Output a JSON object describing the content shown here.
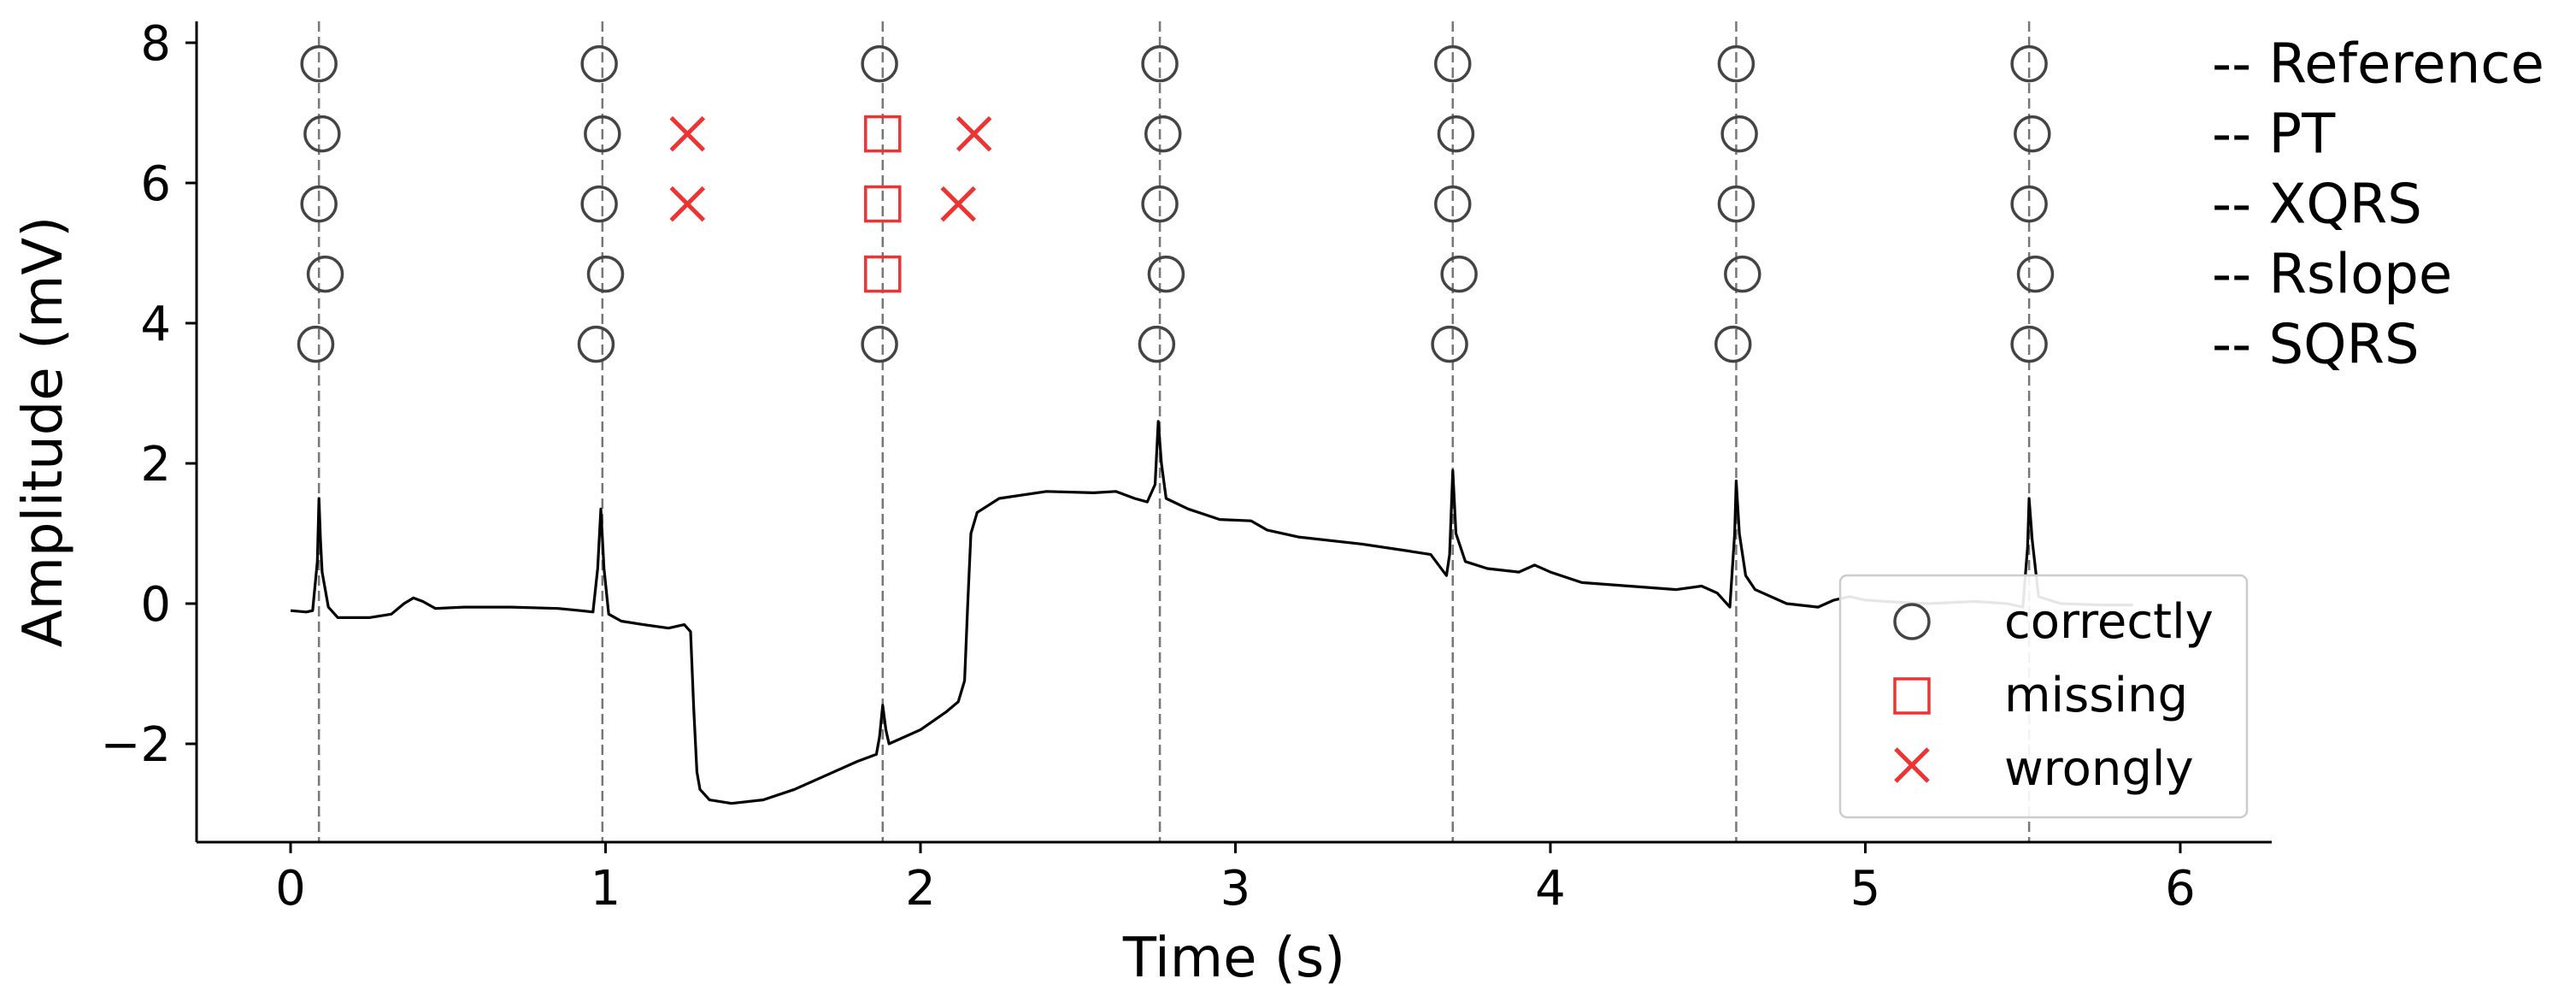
{
  "chart_data": {
    "type": "line",
    "title": "",
    "xlabel": "Time (s)",
    "ylabel": "Amplitude (mV)",
    "xlim": [
      -0.3,
      6.3
    ],
    "ylim": [
      -3.4,
      8.3
    ],
    "x_ticks": [
      0,
      1,
      2,
      3,
      4,
      5,
      6
    ],
    "y_ticks": [
      -2,
      0,
      2,
      4,
      6,
      8
    ],
    "grid": false,
    "colors": {
      "signal": "#000000",
      "correct": "#444444",
      "missing": "#ee3333",
      "wrong": "#ee3333",
      "beat_line": "#777777"
    },
    "beats": [
      0.09,
      0.99,
      1.88,
      2.76,
      3.69,
      4.59,
      5.52
    ],
    "algorithms": [
      {
        "name": "Reference",
        "y": 7.7
      },
      {
        "name": "PT",
        "y": 6.7
      },
      {
        "name": "XQRS",
        "y": 5.7
      },
      {
        "name": "Rslope",
        "y": 4.7
      },
      {
        "name": "SQRS",
        "y": 3.7
      }
    ],
    "detections": {
      "correctly": [
        [
          0.09,
          7.7
        ],
        [
          0.1,
          6.7
        ],
        [
          0.09,
          5.7
        ],
        [
          0.11,
          4.7
        ],
        [
          0.08,
          3.7
        ],
        [
          0.98,
          7.7
        ],
        [
          0.99,
          6.7
        ],
        [
          0.98,
          5.7
        ],
        [
          1.0,
          4.7
        ],
        [
          0.97,
          3.7
        ],
        [
          1.87,
          7.7
        ],
        [
          1.87,
          3.7
        ],
        [
          2.76,
          7.7
        ],
        [
          2.77,
          6.7
        ],
        [
          2.76,
          5.7
        ],
        [
          2.78,
          4.7
        ],
        [
          2.75,
          3.7
        ],
        [
          3.69,
          7.7
        ],
        [
          3.7,
          6.7
        ],
        [
          3.69,
          5.7
        ],
        [
          3.71,
          4.7
        ],
        [
          3.68,
          3.7
        ],
        [
          4.59,
          7.7
        ],
        [
          4.6,
          6.7
        ],
        [
          4.59,
          5.7
        ],
        [
          4.61,
          4.7
        ],
        [
          4.58,
          3.7
        ],
        [
          5.52,
          7.7
        ],
        [
          5.53,
          6.7
        ],
        [
          5.52,
          5.7
        ],
        [
          5.54,
          4.7
        ],
        [
          5.52,
          3.7
        ]
      ],
      "missing": [
        [
          1.88,
          6.7
        ],
        [
          1.88,
          5.7
        ],
        [
          1.88,
          4.7
        ]
      ],
      "wrongly": [
        [
          1.26,
          6.7
        ],
        [
          1.26,
          5.7
        ],
        [
          2.17,
          6.7
        ],
        [
          2.12,
          5.7
        ]
      ]
    },
    "signal": [
      [
        0.0,
        -0.1
      ],
      [
        0.05,
        -0.12
      ],
      [
        0.07,
        -0.1
      ],
      [
        0.085,
        0.6
      ],
      [
        0.09,
        1.5
      ],
      [
        0.095,
        0.9
      ],
      [
        0.1,
        0.45
      ],
      [
        0.12,
        -0.05
      ],
      [
        0.15,
        -0.2
      ],
      [
        0.25,
        -0.2
      ],
      [
        0.32,
        -0.15
      ],
      [
        0.36,
        0.0
      ],
      [
        0.39,
        0.08
      ],
      [
        0.42,
        0.03
      ],
      [
        0.46,
        -0.07
      ],
      [
        0.55,
        -0.05
      ],
      [
        0.7,
        -0.05
      ],
      [
        0.85,
        -0.07
      ],
      [
        0.92,
        -0.1
      ],
      [
        0.96,
        -0.12
      ],
      [
        0.975,
        0.5
      ],
      [
        0.985,
        1.35
      ],
      [
        0.995,
        0.5
      ],
      [
        1.01,
        -0.15
      ],
      [
        1.05,
        -0.25
      ],
      [
        1.12,
        -0.3
      ],
      [
        1.2,
        -0.35
      ],
      [
        1.25,
        -0.3
      ],
      [
        1.27,
        -0.4
      ],
      [
        1.28,
        -1.5
      ],
      [
        1.29,
        -2.4
      ],
      [
        1.3,
        -2.65
      ],
      [
        1.33,
        -2.8
      ],
      [
        1.4,
        -2.85
      ],
      [
        1.5,
        -2.8
      ],
      [
        1.6,
        -2.65
      ],
      [
        1.7,
        -2.45
      ],
      [
        1.8,
        -2.25
      ],
      [
        1.86,
        -2.15
      ],
      [
        1.87,
        -1.9
      ],
      [
        1.88,
        -1.45
      ],
      [
        1.89,
        -1.8
      ],
      [
        1.9,
        -2.0
      ],
      [
        2.0,
        -1.8
      ],
      [
        2.08,
        -1.55
      ],
      [
        2.12,
        -1.4
      ],
      [
        2.14,
        -1.1
      ],
      [
        2.15,
        0.0
      ],
      [
        2.16,
        1.0
      ],
      [
        2.18,
        1.3
      ],
      [
        2.25,
        1.5
      ],
      [
        2.4,
        1.6
      ],
      [
        2.55,
        1.58
      ],
      [
        2.62,
        1.6
      ],
      [
        2.68,
        1.5
      ],
      [
        2.72,
        1.45
      ],
      [
        2.745,
        1.7
      ],
      [
        2.755,
        2.6
      ],
      [
        2.765,
        2.0
      ],
      [
        2.78,
        1.5
      ],
      [
        2.85,
        1.35
      ],
      [
        2.95,
        1.2
      ],
      [
        3.05,
        1.18
      ],
      [
        3.1,
        1.05
      ],
      [
        3.2,
        0.95
      ],
      [
        3.4,
        0.85
      ],
      [
        3.55,
        0.75
      ],
      [
        3.62,
        0.7
      ],
      [
        3.67,
        0.4
      ],
      [
        3.68,
        0.7
      ],
      [
        3.69,
        1.9
      ],
      [
        3.7,
        1.0
      ],
      [
        3.73,
        0.6
      ],
      [
        3.8,
        0.5
      ],
      [
        3.9,
        0.45
      ],
      [
        3.95,
        0.55
      ],
      [
        4.0,
        0.45
      ],
      [
        4.1,
        0.3
      ],
      [
        4.25,
        0.25
      ],
      [
        4.4,
        0.2
      ],
      [
        4.48,
        0.25
      ],
      [
        4.53,
        0.15
      ],
      [
        4.57,
        -0.05
      ],
      [
        4.585,
        1.0
      ],
      [
        4.59,
        1.75
      ],
      [
        4.6,
        1.0
      ],
      [
        4.62,
        0.4
      ],
      [
        4.65,
        0.2
      ],
      [
        4.75,
        0.0
      ],
      [
        4.85,
        -0.05
      ],
      [
        4.9,
        0.05
      ],
      [
        4.95,
        0.1
      ],
      [
        5.0,
        0.05
      ],
      [
        5.1,
        0.02
      ],
      [
        5.2,
        0.0
      ],
      [
        5.35,
        0.03
      ],
      [
        5.45,
        0.0
      ],
      [
        5.5,
        -0.05
      ],
      [
        5.515,
        0.8
      ],
      [
        5.52,
        1.5
      ],
      [
        5.53,
        0.9
      ],
      [
        5.55,
        0.1
      ],
      [
        5.62,
        0.0
      ],
      [
        5.75,
        -0.02
      ],
      [
        5.85,
        -0.02
      ]
    ],
    "legend": {
      "placement": "lower-right",
      "entries": [
        "correctly",
        "missing",
        "wrongly"
      ]
    }
  }
}
